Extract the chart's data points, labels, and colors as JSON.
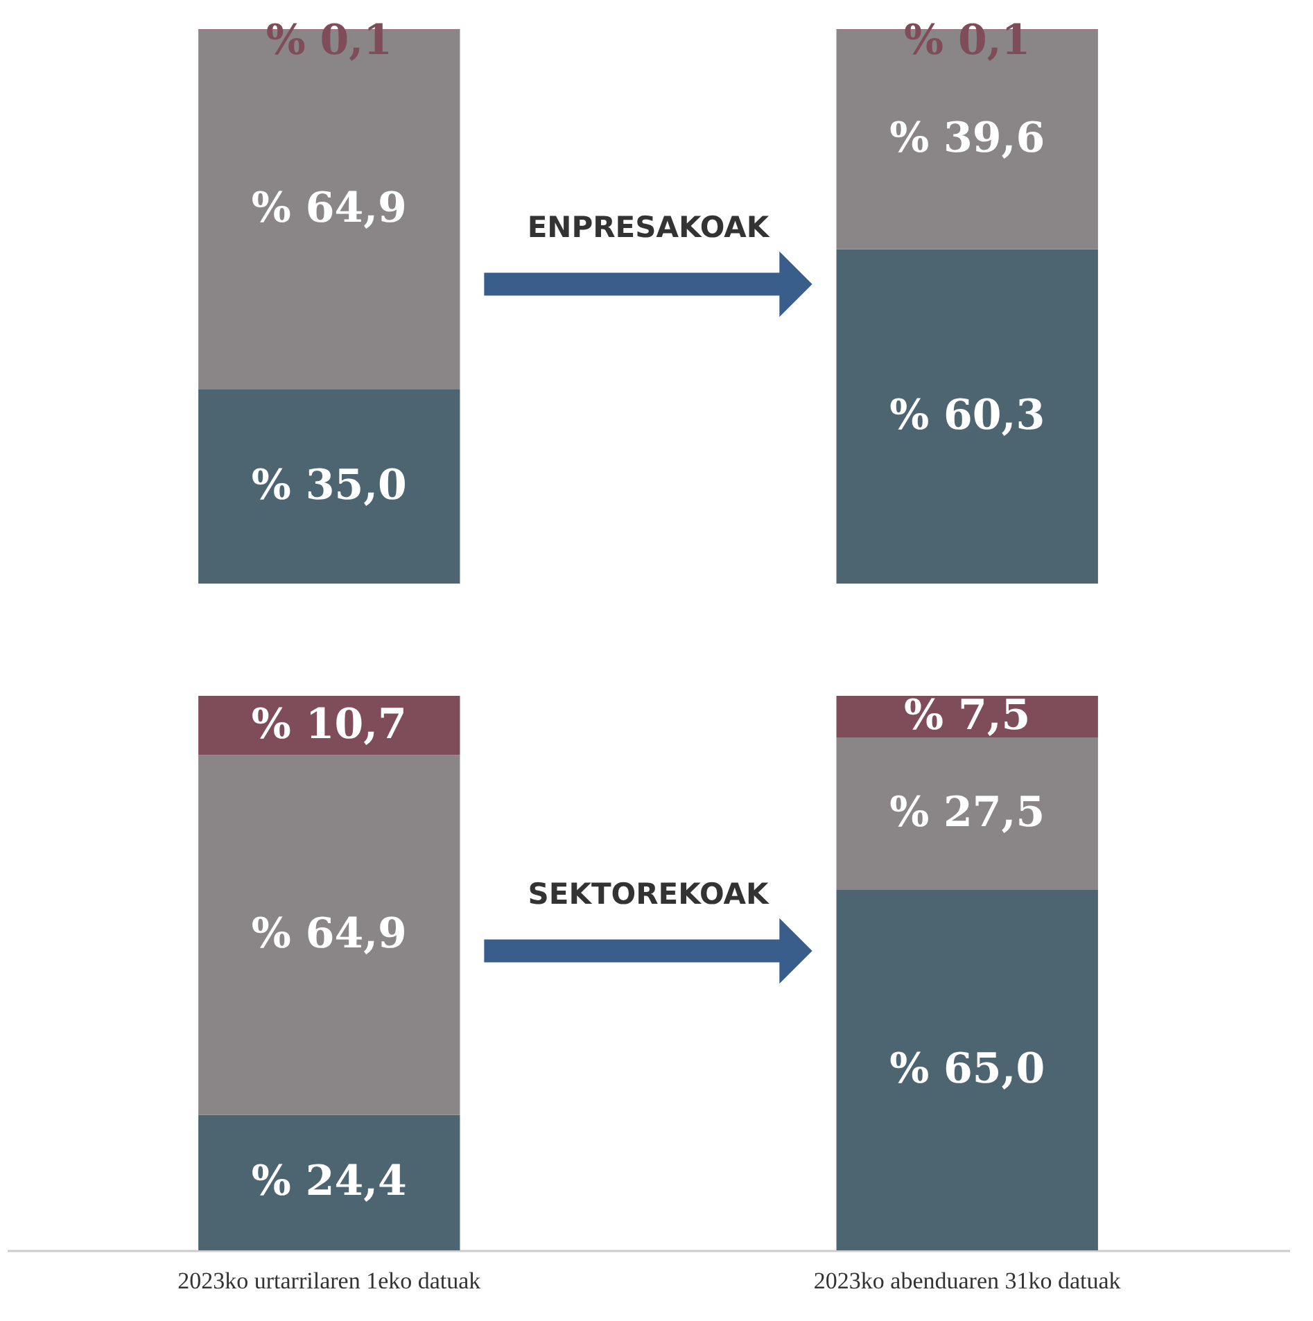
{
  "chart_data": [
    {
      "type": "bar",
      "stacked": true,
      "categories": [
        null,
        null
      ],
      "ylim": [
        0,
        100
      ],
      "tick_labels": false,
      "annotations": [
        "ENPRESAKOAK"
      ],
      "series": [
        {
          "color": "#4d6570",
          "values": [
            35.0,
            60.3
          ],
          "value_labels": [
            "% 35,0",
            "% 60,3"
          ]
        },
        {
          "color": "#8a8687",
          "values": [
            64.9,
            39.6
          ],
          "value_labels": [
            "% 64,9",
            "% 39,6"
          ]
        },
        {
          "color": "#7f4d5a",
          "values": [
            0.1,
            0.1
          ],
          "value_labels": [
            "% 0,1",
            "% 0,1"
          ]
        }
      ]
    },
    {
      "type": "bar",
      "stacked": true,
      "categories": [
        "2023ko urtarrilaren 1eko datuak",
        "2023ko abenduaren 31ko datuak"
      ],
      "ylim": [
        0,
        100
      ],
      "tick_labels": "x",
      "annotations": [
        "SEKTOREKOAK"
      ],
      "series": [
        {
          "color": "#4d6570",
          "values": [
            24.4,
            65.0
          ],
          "value_labels": [
            "% 24,4",
            "% 65,0"
          ]
        },
        {
          "color": "#8a8687",
          "values": [
            64.9,
            27.5
          ],
          "value_labels": [
            "% 64,9",
            "% 27,5"
          ]
        },
        {
          "color": "#7f4d5a",
          "values": [
            10.7,
            7.5
          ],
          "value_labels": [
            "% 10,7",
            "% 7,5"
          ]
        }
      ]
    }
  ]
}
